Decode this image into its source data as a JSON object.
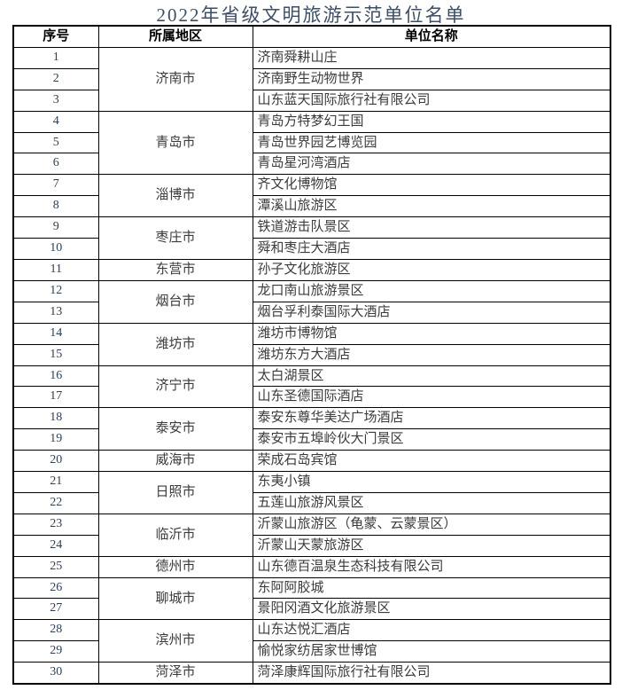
{
  "title": "2022年省级文明旅游示范单位名单",
  "colors": {
    "background": "#ffffff",
    "border": "#000000",
    "title_text": "#3e4e64",
    "header_text": "#000000",
    "body_text": "#3b3b3b",
    "serial_text": "#2e4157"
  },
  "table": {
    "headers": [
      "序号",
      "所属地区",
      "单位名称"
    ],
    "groups": [
      {
        "region": "济南市",
        "items": [
          {
            "no": "1",
            "name": "济南舜耕山庄"
          },
          {
            "no": "2",
            "name": "济南野生动物世界"
          },
          {
            "no": "3",
            "name": "山东蓝天国际旅行社有限公司"
          }
        ]
      },
      {
        "region": "青岛市",
        "items": [
          {
            "no": "4",
            "name": "青岛方特梦幻王国"
          },
          {
            "no": "5",
            "name": "青岛世界园艺博览园"
          },
          {
            "no": "6",
            "name": "青岛星河湾酒店"
          }
        ]
      },
      {
        "region": "淄博市",
        "items": [
          {
            "no": "7",
            "name": "齐文化博物馆"
          },
          {
            "no": "8",
            "name": "潭溪山旅游区"
          }
        ]
      },
      {
        "region": "枣庄市",
        "items": [
          {
            "no": "9",
            "name": "铁道游击队景区"
          },
          {
            "no": "10",
            "name": "舜和枣庄大酒店"
          }
        ]
      },
      {
        "region": "东营市",
        "items": [
          {
            "no": "11",
            "name": "孙子文化旅游区"
          }
        ]
      },
      {
        "region": "烟台市",
        "items": [
          {
            "no": "12",
            "name": "龙口南山旅游景区"
          },
          {
            "no": "13",
            "name": "烟台孚利泰国际大酒店"
          }
        ]
      },
      {
        "region": "潍坊市",
        "items": [
          {
            "no": "14",
            "name": "潍坊市博物馆"
          },
          {
            "no": "15",
            "name": "潍坊东方大酒店"
          }
        ]
      },
      {
        "region": "济宁市",
        "items": [
          {
            "no": "16",
            "name": "太白湖景区"
          },
          {
            "no": "17",
            "name": "山东圣德国际酒店"
          }
        ]
      },
      {
        "region": "泰安市",
        "items": [
          {
            "no": "18",
            "name": "泰安东尊华美达广场酒店"
          },
          {
            "no": "19",
            "name": "泰安市五埠岭伙大门景区"
          }
        ]
      },
      {
        "region": "威海市",
        "items": [
          {
            "no": "20",
            "name": "荣成石岛宾馆"
          }
        ]
      },
      {
        "region": "日照市",
        "items": [
          {
            "no": "21",
            "name": "东夷小镇"
          },
          {
            "no": "22",
            "name": "五莲山旅游风景区"
          }
        ]
      },
      {
        "region": "临沂市",
        "items": [
          {
            "no": "23",
            "name": "沂蒙山旅游区（龟蒙、云蒙景区）"
          },
          {
            "no": "24",
            "name": "沂蒙山天蒙旅游区"
          }
        ]
      },
      {
        "region": "德州市",
        "items": [
          {
            "no": "25",
            "name": "山东德百温泉生态科技有限公司"
          }
        ]
      },
      {
        "region": "聊城市",
        "items": [
          {
            "no": "26",
            "name": "东阿阿胶城"
          },
          {
            "no": "27",
            "name": "景阳冈酒文化旅游景区"
          }
        ]
      },
      {
        "region": "滨州市",
        "items": [
          {
            "no": "28",
            "name": "山东达悦汇酒店"
          },
          {
            "no": "29",
            "name": "愉悦家纺居家世博馆"
          }
        ]
      },
      {
        "region": "菏泽市",
        "items": [
          {
            "no": "30",
            "name": "菏泽康辉国际旅行社有限公司"
          }
        ]
      }
    ]
  }
}
